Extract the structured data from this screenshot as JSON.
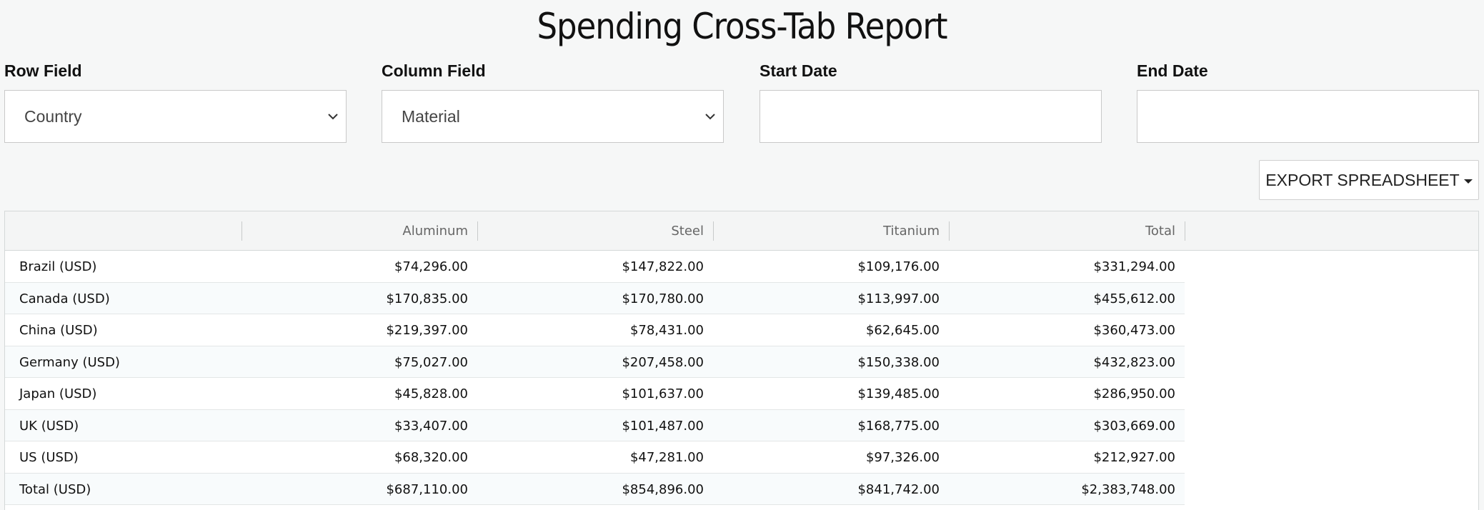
{
  "page": {
    "title": "Spending Cross-Tab Report"
  },
  "filters": {
    "row_field": {
      "label": "Row Field",
      "value": "Country"
    },
    "column_field": {
      "label": "Column Field",
      "value": "Material"
    },
    "start_date": {
      "label": "Start Date",
      "value": ""
    },
    "end_date": {
      "label": "End Date",
      "value": ""
    }
  },
  "toolbar": {
    "export_label": "EXPORT SPREADSHEET"
  },
  "table": {
    "columns": [
      "",
      "Aluminum",
      "Steel",
      "Titanium",
      "Total"
    ],
    "rows": [
      {
        "label": "Brazil (USD)",
        "values": [
          "$74,296.00",
          "$147,822.00",
          "$109,176.00",
          "$331,294.00"
        ]
      },
      {
        "label": "Canada (USD)",
        "values": [
          "$170,835.00",
          "$170,780.00",
          "$113,997.00",
          "$455,612.00"
        ]
      },
      {
        "label": "China (USD)",
        "values": [
          "$219,397.00",
          "$78,431.00",
          "$62,645.00",
          "$360,473.00"
        ]
      },
      {
        "label": "Germany (USD)",
        "values": [
          "$75,027.00",
          "$207,458.00",
          "$150,338.00",
          "$432,823.00"
        ]
      },
      {
        "label": "Japan (USD)",
        "values": [
          "$45,828.00",
          "$101,637.00",
          "$139,485.00",
          "$286,950.00"
        ]
      },
      {
        "label": "UK (USD)",
        "values": [
          "$33,407.00",
          "$101,487.00",
          "$168,775.00",
          "$303,669.00"
        ]
      },
      {
        "label": "US (USD)",
        "values": [
          "$68,320.00",
          "$47,281.00",
          "$97,326.00",
          "$212,927.00"
        ]
      },
      {
        "label": "Total (USD)",
        "values": [
          "$687,110.00",
          "$854,896.00",
          "$841,742.00",
          "$2,383,748.00"
        ]
      }
    ]
  }
}
